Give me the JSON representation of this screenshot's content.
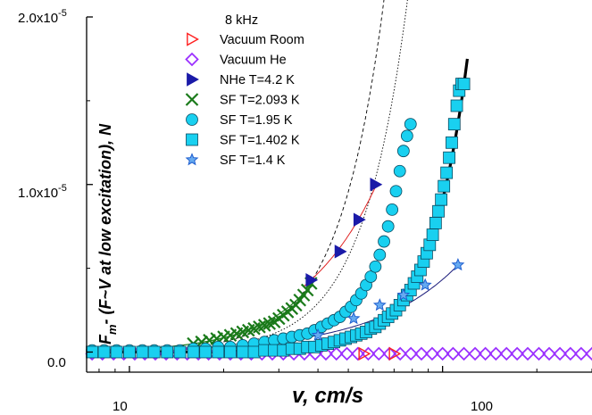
{
  "chart_data": {
    "type": "scatter",
    "xscale": "log",
    "xlim": [
      7.3,
      300
    ],
    "ylim": [
      -0.12,
      2.0
    ],
    "y_multiplier_label": "x10",
    "y_multiplier_exp": "-5",
    "x_tick_labels": [
      {
        "value": 10,
        "label": "10"
      },
      {
        "value": 100,
        "label": "100"
      }
    ],
    "y_tick_labels": [
      {
        "value": 0.0,
        "label": "0.0",
        "exp": ""
      },
      {
        "value": 1.0,
        "label": "1.0x10",
        "exp": "-5"
      },
      {
        "value": 2.0,
        "label": "2.0x10",
        "exp": "-5"
      }
    ],
    "xlabel": "v, cm/s",
    "ylabel_main": "F",
    "ylabel_sub": "m",
    "ylabel_rest": "- (F~V at low excitation), N",
    "legend_title": "8 kHz",
    "series": [
      {
        "name": "Vacuum Room",
        "marker": "triangle-right-open",
        "color": "#ff2020",
        "x": [
          56,
          70
        ],
        "y": [
          -0.01,
          -0.01
        ]
      },
      {
        "name": "Vacuum He",
        "marker": "diamond-open",
        "color": "#9b30ff",
        "x": [
          7.6,
          8.2,
          8.9,
          9.6,
          10.4,
          11.2,
          12.1,
          13.1,
          14.2,
          15.3,
          16.6,
          17.9,
          19.4,
          21.0,
          22.7,
          24.5,
          26.5,
          28.6,
          31.0,
          33.5,
          36.2,
          39.2,
          42.4,
          45.8,
          49.5,
          53.6,
          57.9,
          62.6,
          67.7,
          73.2,
          79.2,
          85.6,
          92.6,
          100,
          108,
          117,
          127,
          137,
          148,
          160,
          173,
          187,
          203,
          219,
          237,
          256,
          277,
          300
        ],
        "y": [
          -0.01,
          -0.01,
          -0.01,
          -0.01,
          -0.01,
          -0.01,
          -0.01,
          -0.01,
          -0.01,
          -0.01,
          -0.01,
          -0.01,
          -0.01,
          -0.01,
          -0.01,
          -0.01,
          -0.01,
          -0.01,
          -0.01,
          -0.01,
          -0.01,
          -0.01,
          -0.01,
          -0.01,
          -0.01,
          -0.01,
          -0.01,
          -0.01,
          -0.01,
          -0.01,
          -0.01,
          -0.01,
          -0.01,
          -0.01,
          -0.01,
          -0.01,
          -0.01,
          -0.01,
          -0.01,
          -0.01,
          -0.01,
          -0.01,
          -0.01,
          -0.01,
          -0.01,
          -0.01,
          -0.01,
          -0.01
        ]
      },
      {
        "name": "NHe T=4.2 K",
        "marker": "triangle-right-filled",
        "color": "#1a1aa8",
        "x": [
          38,
          47,
          54,
          61
        ],
        "y": [
          0.43,
          0.6,
          0.79,
          1.0
        ]
      },
      {
        "name": "SF T=2.093 K",
        "marker": "x",
        "color": "#1a7a1a",
        "x": [
          16,
          17,
          18,
          19,
          20,
          21,
          22,
          23,
          24,
          25,
          26,
          27,
          28,
          29,
          30,
          31,
          32,
          33,
          34,
          35,
          36,
          37,
          38
        ],
        "y": [
          0.05,
          0.06,
          0.07,
          0.08,
          0.09,
          0.1,
          0.11,
          0.12,
          0.13,
          0.14,
          0.15,
          0.16,
          0.17,
          0.18,
          0.2,
          0.22,
          0.24,
          0.26,
          0.28,
          0.31,
          0.34,
          0.37,
          0.41
        ]
      },
      {
        "name": "SF T=1.95 K",
        "marker": "circle-filled",
        "color": "#19d0f0",
        "x": [
          7.6,
          8.3,
          9.1,
          10.0,
          11.0,
          12.0,
          13.2,
          14.5,
          16.0,
          17.5,
          19.2,
          21.0,
          23.0,
          25.0,
          27.0,
          29.0,
          31.0,
          33.0,
          35.0,
          37.0,
          39.0,
          41.0,
          43.0,
          45.0,
          47.0,
          49.0,
          51.0,
          53.0,
          55.0,
          57.0,
          59.0,
          61.0,
          63.0,
          65.0,
          67.0,
          69.0,
          71.0,
          73.0,
          75.0,
          77.0,
          79.0
        ],
        "y": [
          0.01,
          0.01,
          0.01,
          0.01,
          0.01,
          0.01,
          0.01,
          0.01,
          0.02,
          0.02,
          0.03,
          0.03,
          0.04,
          0.05,
          0.06,
          0.07,
          0.08,
          0.09,
          0.1,
          0.11,
          0.13,
          0.15,
          0.17,
          0.19,
          0.21,
          0.24,
          0.27,
          0.31,
          0.35,
          0.4,
          0.45,
          0.51,
          0.58,
          0.66,
          0.75,
          0.85,
          0.96,
          1.08,
          1.2,
          1.29,
          1.36
        ]
      },
      {
        "name": "SF T=1.402 K",
        "marker": "square-filled",
        "color": "#19d0f0",
        "x": [
          7.6,
          8.3,
          9.1,
          10.0,
          11.0,
          12.0,
          13.2,
          14.5,
          16.0,
          17.5,
          19.2,
          21.0,
          23.0,
          25.0,
          27.0,
          29.0,
          31.0,
          33.0,
          35.0,
          37.0,
          39.0,
          41.0,
          43.0,
          45.0,
          47.0,
          49.0,
          51.0,
          53.0,
          55.0,
          57.0,
          59.0,
          61.0,
          63.0,
          65.0,
          67.0,
          69.0,
          71.0,
          73.0,
          75.0,
          77.0,
          79.0,
          81.0,
          83.0,
          85.0,
          87.0,
          89.0,
          91.0,
          93.0,
          95.0,
          97.0,
          99.0,
          101.0,
          103.0,
          105.0,
          107.0,
          109.0,
          111.0,
          113.0,
          115.0,
          117.0
        ],
        "y": [
          0.0,
          0.0,
          0.0,
          0.0,
          0.0,
          0.0,
          0.0,
          0.0,
          0.0,
          0.0,
          0.0,
          0.0,
          0.0,
          0.0,
          0.01,
          0.01,
          0.01,
          0.02,
          0.02,
          0.03,
          0.03,
          0.04,
          0.05,
          0.06,
          0.07,
          0.08,
          0.09,
          0.1,
          0.11,
          0.12,
          0.14,
          0.15,
          0.17,
          0.19,
          0.21,
          0.23,
          0.25,
          0.28,
          0.31,
          0.34,
          0.37,
          0.41,
          0.45,
          0.49,
          0.54,
          0.59,
          0.64,
          0.7,
          0.77,
          0.84,
          0.91,
          0.99,
          1.07,
          1.16,
          1.25,
          1.36,
          1.47,
          1.56,
          1.6,
          1.6
        ]
      },
      {
        "name": "SF T=1.4 K",
        "marker": "star",
        "color": "#1f5fd0",
        "x": [
          40,
          52,
          63,
          75,
          88,
          112
        ],
        "y": [
          0.1,
          0.2,
          0.28,
          0.34,
          0.4,
          0.52
        ]
      }
    ]
  }
}
